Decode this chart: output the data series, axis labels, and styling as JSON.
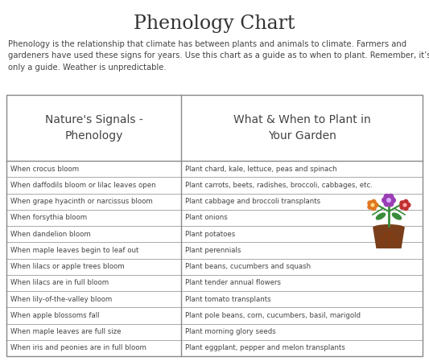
{
  "title": "Phenology Chart",
  "subtitle": "Phenology is the relationship that climate has between plants and animals to climate. Farmers and\ngardeners have used these signs for years. Use this chart as a guide as to when to plant. Remember, it’s\nonly a guide. Weather is unpredictable.",
  "col1_header": "Nature's Signals -\nPhenology",
  "col2_header": "What & When to Plant in\nYour Garden",
  "rows": [
    [
      "When crocus bloom",
      "Plant chard, kale, lettuce, peas and spinach"
    ],
    [
      "When daffodils bloom or lilac leaves open",
      "Plant carrots, beets, radishes, broccoli, cabbages, etc."
    ],
    [
      "When grape hyacinth or narcissus bloom",
      "Plant cabbage and broccoli transplants"
    ],
    [
      "When forsythia bloom",
      "Plant onions"
    ],
    [
      "When dandelion bloom",
      "Plant potatoes"
    ],
    [
      "When maple leaves begin to leaf out",
      "Plant perennials"
    ],
    [
      "When lilacs or apple trees bloom",
      "Plant beans, cucumbers and squash"
    ],
    [
      "When lilacs are in full bloom",
      "Plant tender annual flowers"
    ],
    [
      "When lily-of-the-valley bloom",
      "Plant tomato transplants"
    ],
    [
      "When apple blossoms fall",
      "Plant pole beans, corn, cucumbers, basil, marigold"
    ],
    [
      "When maple leaves are full size",
      "Plant morning glory seeds"
    ],
    [
      "When iris and peonies are in full bloom",
      "Plant eggplant, pepper and melon transplants"
    ]
  ],
  "bg_color": "#ffffff",
  "table_bg": "#ffffff",
  "border_color": "#888888",
  "text_color": "#444444",
  "title_color": "#333333",
  "col_split": 0.42,
  "icon_row": 4,
  "icon_colors": {
    "purple": "#9b3fb5",
    "orange": "#e07820",
    "red": "#c03030",
    "green": "#3a8c3a",
    "brown": "#7a3f1a",
    "root_brown": "#8B4513"
  }
}
